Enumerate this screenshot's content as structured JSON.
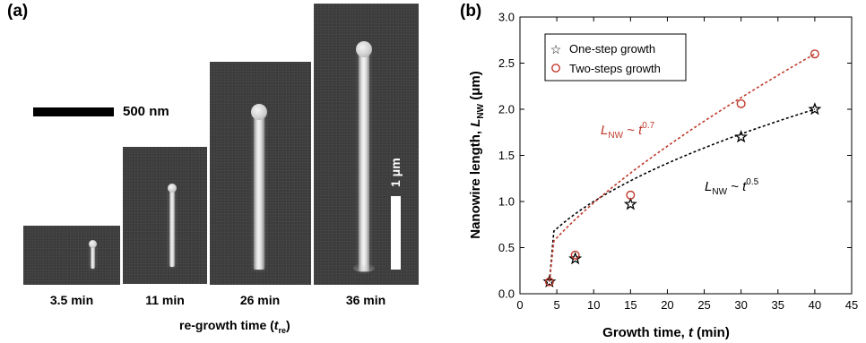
{
  "panel_a": {
    "letter": "(a)",
    "scalebar_label": "500 nm",
    "micron_label": "1 μm",
    "xlabel_main": "re-growth time (",
    "xlabel_var": "t",
    "xlabel_sub": "re",
    "xlabel_close": ")",
    "images": [
      {
        "time": "3.5 min"
      },
      {
        "time": "11 min"
      },
      {
        "time": "26 min"
      },
      {
        "time": "36 min"
      }
    ]
  },
  "panel_b": {
    "letter": "(b)",
    "anno_two": {
      "base": "L",
      "sub": "NW",
      "rest": " ~ t",
      "exp": "0.7",
      "color": "#c0392b"
    },
    "anno_one": {
      "base": "L",
      "sub": "NW",
      "rest": " ~ t",
      "exp": "0.5",
      "color": "#000000"
    },
    "ylabel_main": "Nanowire length, ",
    "ylabel_var": "L",
    "ylabel_sub": "NW",
    "ylabel_unit": " (μm)",
    "xlabel_main": "Growth time, ",
    "xlabel_var": "t",
    "xlabel_unit": " (min)"
  },
  "chart_data": {
    "type": "scatter",
    "xlim": [
      0,
      45
    ],
    "ylim": [
      0,
      3.0
    ],
    "xticks": [
      "0",
      "5",
      "10",
      "15",
      "20",
      "25",
      "30",
      "35",
      "40",
      "45"
    ],
    "yticks": [
      "0.0",
      "0.5",
      "1.0",
      "1.5",
      "2.0",
      "2.5",
      "3.0"
    ],
    "grid": false,
    "legend_position": "top-left",
    "series": [
      {
        "name": "One-step growth",
        "marker": "star",
        "color": "#000000",
        "x": [
          4,
          7.5,
          15,
          30,
          40
        ],
        "y": [
          0.13,
          0.38,
          0.97,
          1.7,
          2.0
        ],
        "fit_exponent": 0.5
      },
      {
        "name": "Two-steps growth",
        "marker": "circle",
        "color": "#c0392b",
        "x": [
          4,
          7.5,
          15,
          30,
          40
        ],
        "y": [
          0.13,
          0.42,
          1.07,
          2.06,
          2.6
        ],
        "fit_exponent": 0.7
      }
    ]
  }
}
